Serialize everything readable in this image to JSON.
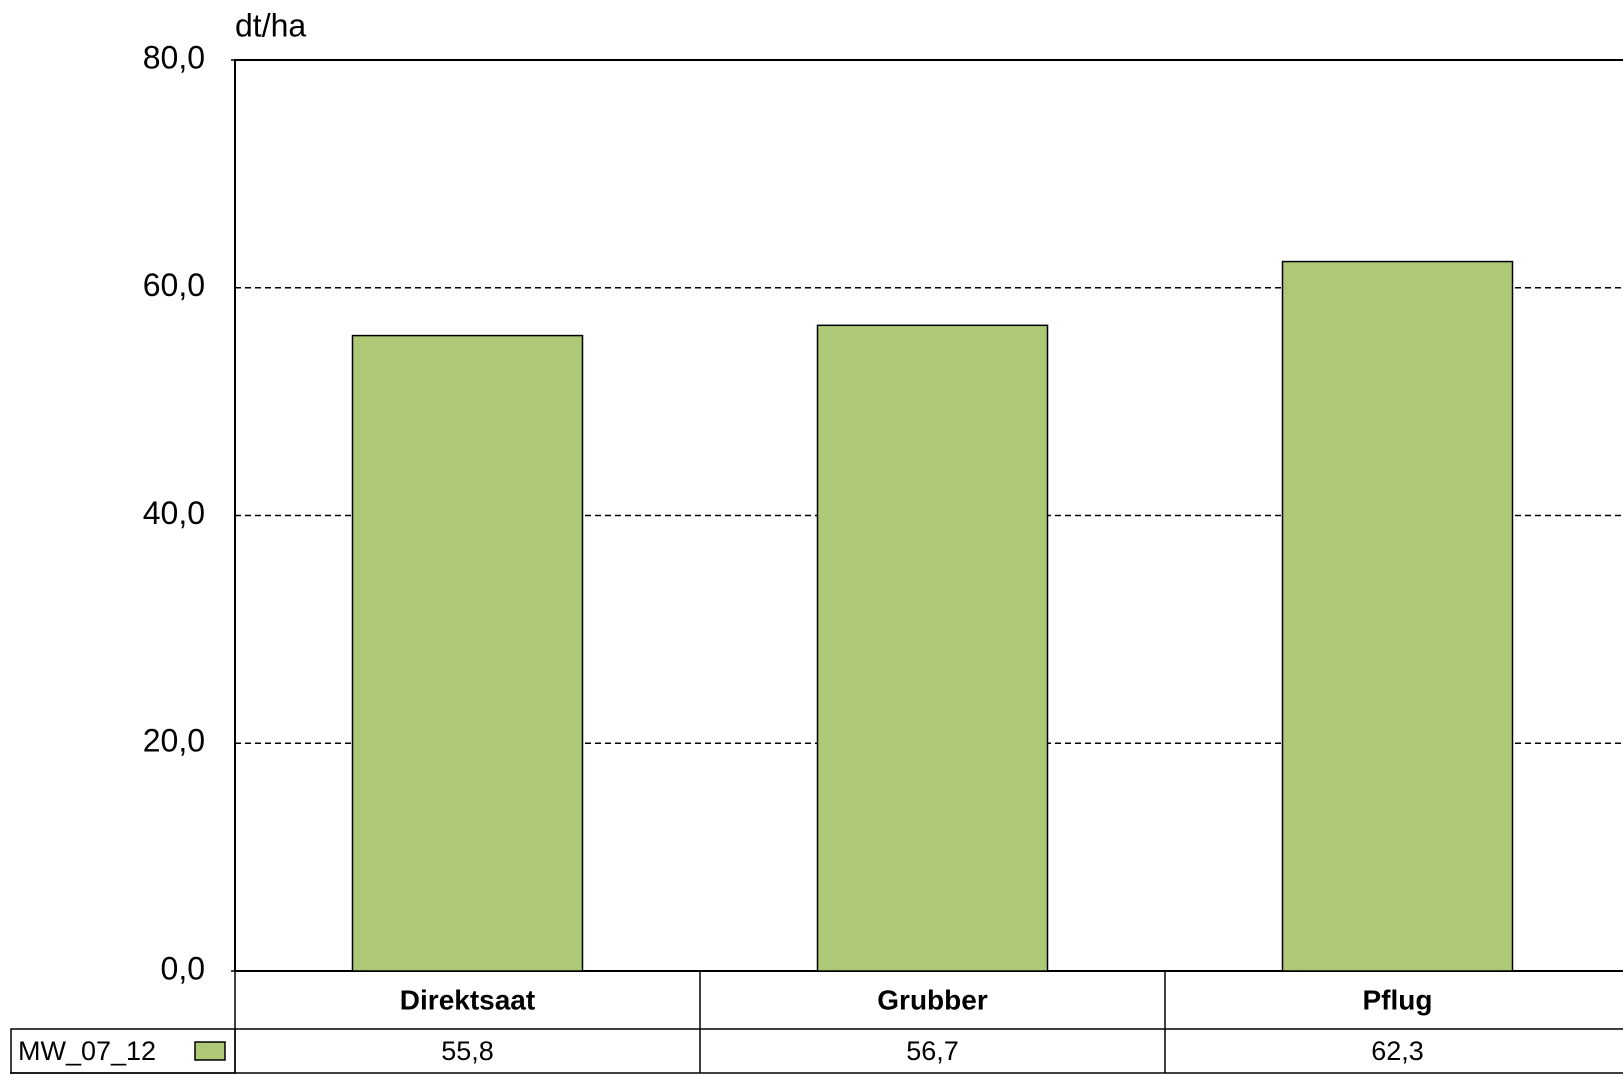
{
  "chart_data": {
    "type": "bar",
    "y_axis_label": "dt/ha",
    "categories": [
      "Direktsaat",
      "Grubber",
      "Pflug"
    ],
    "series": [
      {
        "name": "MW_07_12",
        "color": "#adc978",
        "values": [
          55.8,
          56.7,
          62.3
        ],
        "value_labels": [
          "55,8",
          "56,7",
          "62,3"
        ]
      }
    ],
    "ylim": [
      0,
      80
    ],
    "yticks": [
      {
        "value": 0,
        "label": "0,0"
      },
      {
        "value": 20,
        "label": "20,0"
      },
      {
        "value": 40,
        "label": "40,0"
      },
      {
        "value": 60,
        "label": "60,0"
      },
      {
        "value": 80,
        "label": "80,0"
      }
    ],
    "grid": true
  }
}
